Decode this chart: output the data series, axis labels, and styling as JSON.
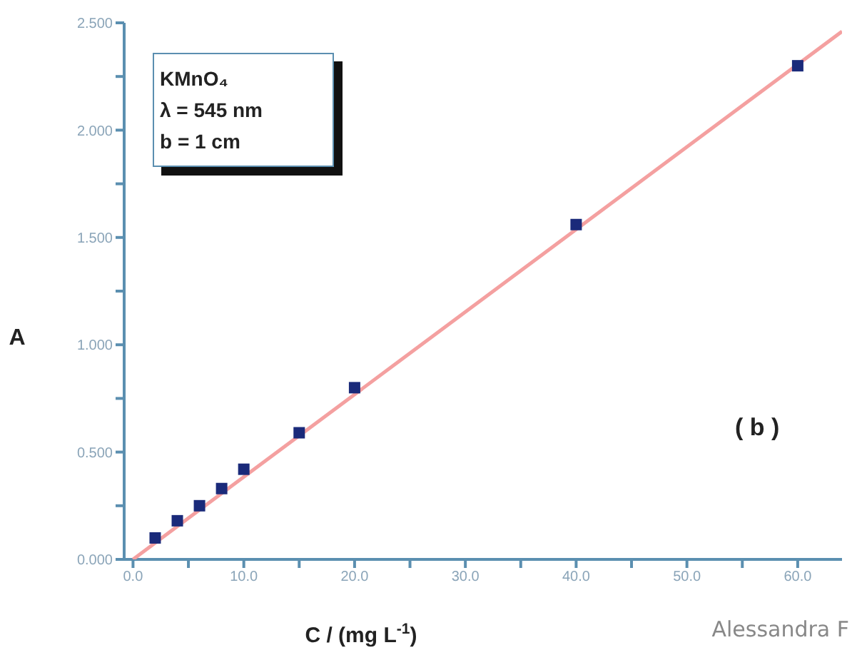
{
  "chart_data": {
    "type": "scatter",
    "xlabel": "C / (mg L$^{-1}$)",
    "ylabel": "A",
    "xlim": [
      -0.8,
      64
    ],
    "ylim": [
      0,
      2.5
    ],
    "xticks": [
      {
        "value": 0,
        "label": "0.0"
      },
      {
        "value": 5,
        "label": null
      },
      {
        "value": 10,
        "label": "10.0"
      },
      {
        "value": 15,
        "label": null
      },
      {
        "value": 20,
        "label": "20.0"
      },
      {
        "value": 25,
        "label": null
      },
      {
        "value": 30,
        "label": "30.0"
      },
      {
        "value": 35,
        "label": null
      },
      {
        "value": 40,
        "label": "40.0"
      },
      {
        "value": 45,
        "label": null
      },
      {
        "value": 50,
        "label": "50.0"
      },
      {
        "value": 55,
        "label": null
      },
      {
        "value": 60,
        "label": "60.0"
      }
    ],
    "yticks": [
      {
        "value": 0,
        "label": "0.000"
      },
      {
        "value": 0.25,
        "label": null
      },
      {
        "value": 0.5,
        "label": "0.500"
      },
      {
        "value": 0.75,
        "label": null
      },
      {
        "value": 1,
        "label": "1.000"
      },
      {
        "value": 1.25,
        "label": null
      },
      {
        "value": 1.5,
        "label": "1.500"
      },
      {
        "value": 1.75,
        "label": null
      },
      {
        "value": 2,
        "label": "2.000"
      },
      {
        "value": 2.25,
        "label": null
      },
      {
        "value": 2.5,
        "label": "2.500"
      }
    ],
    "marker": "square",
    "series": [
      {
        "type": "line",
        "color": "#f4a0a0",
        "marker": "none",
        "x": [
          0,
          64
        ],
        "values": [
          0,
          2.46
        ]
      },
      {
        "color": "#1a2a7a",
        "x": [
          2,
          4,
          6,
          8,
          10,
          15,
          20,
          40,
          60
        ],
        "values": [
          0.1,
          0.18,
          0.25,
          0.33,
          0.42,
          0.59,
          0.8,
          1.56,
          2.3
        ]
      }
    ],
    "annotations": [
      "KMnO₄",
      "λ = 545 nm",
      "b = 1 cm",
      "( b )",
      "Alessandra F"
    ]
  }
}
